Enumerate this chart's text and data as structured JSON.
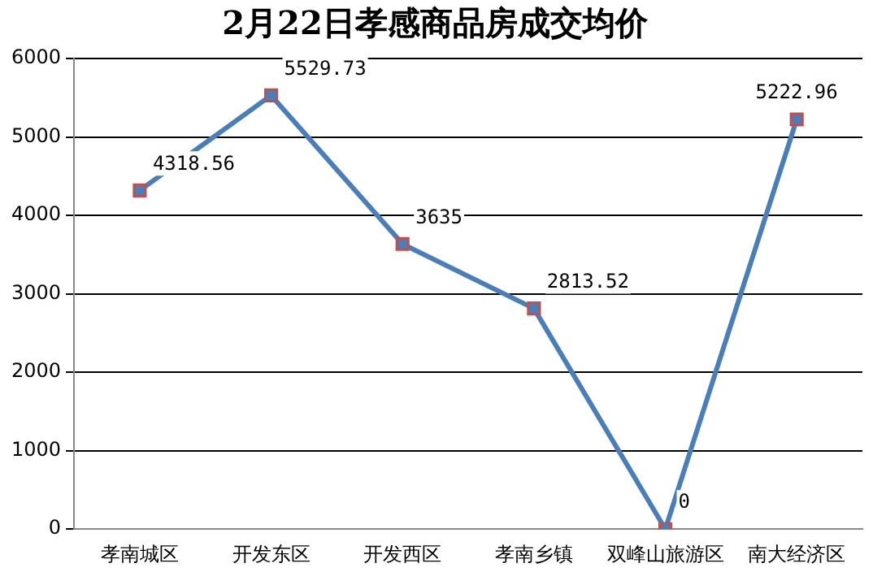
{
  "chart_data": {
    "type": "line",
    "title": "2月22日孝感商品房成交均价",
    "categories": [
      "孝南城区",
      "开发东区",
      "开发西区",
      "孝南乡镇",
      "双峰山旅游区",
      "南大经济区"
    ],
    "series": [
      {
        "color": "#4a7ebb",
        "values": [
          4318.56,
          5529.73,
          3635,
          2813.52,
          0,
          5222.96
        ]
      }
    ],
    "ylim": [
      0,
      6000
    ],
    "yticks": [
      0,
      1000,
      2000,
      3000,
      4000,
      5000,
      6000
    ],
    "grid": "y",
    "legend": false,
    "marker": "square",
    "line_style": "solid",
    "data_labels": true
  }
}
